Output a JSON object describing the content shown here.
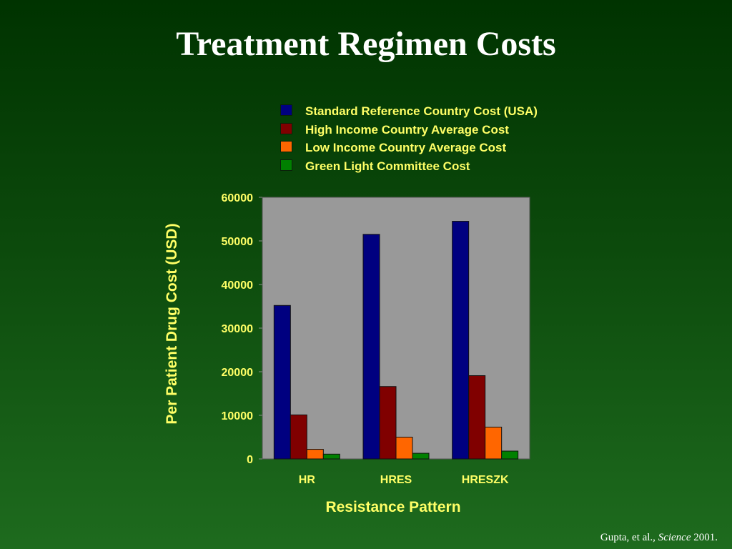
{
  "title": "Treatment Regimen Costs",
  "citation": {
    "authors": "Gupta, et al.,",
    "journal": "Science",
    "year": "2001."
  },
  "chart_data": {
    "type": "bar",
    "xlabel": "Resistance Pattern",
    "ylabel": "Per Patient Drug Cost (USD)",
    "ylim": [
      0,
      60000
    ],
    "yticks": [
      0,
      10000,
      20000,
      30000,
      40000,
      50000,
      60000
    ],
    "categories": [
      "HR",
      "HRES",
      "HRESZK"
    ],
    "legend_position": "top",
    "grid": false,
    "plot_background": "#999999",
    "series": [
      {
        "name": "Standard Reference Country Cost (USA)",
        "color": "#000080",
        "values": [
          35200,
          51500,
          54500
        ]
      },
      {
        "name": "High Income Country Average Cost",
        "color": "#800000",
        "values": [
          10100,
          16600,
          19100
        ]
      },
      {
        "name": "Low Income Country Average Cost",
        "color": "#ff6600",
        "values": [
          2200,
          5000,
          7300
        ]
      },
      {
        "name": "Green Light Committee Cost",
        "color": "#008000",
        "values": [
          1100,
          1300,
          1800
        ]
      }
    ]
  }
}
